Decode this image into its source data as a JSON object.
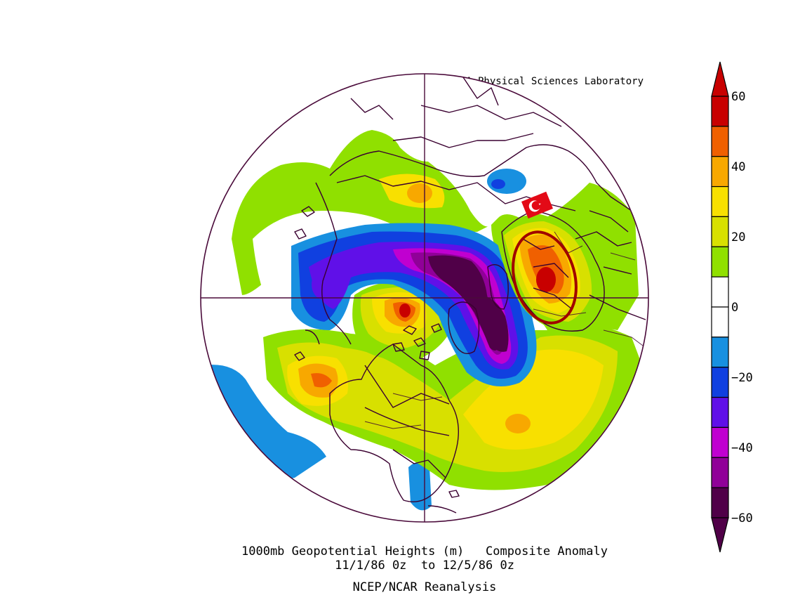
{
  "attribution": "NOAA Physical Sciences Laboratory",
  "caption": {
    "line1": "1000mb Geopotential Heights (m)   Composite Anomaly",
    "line2": "11/1/86 0z  to 12/5/86 0z",
    "line3": "NCEP/NCAR Reanalysis"
  },
  "colorbar": {
    "ticks": [
      "60",
      "40",
      "20",
      "0",
      "−20",
      "−40",
      "−60"
    ],
    "colors": [
      "#c80000",
      "#f06000",
      "#f8a800",
      "#f8e000",
      "#d8e000",
      "#90e000",
      "#ffffff",
      "#ffffff",
      "#1890e0",
      "#1040e0",
      "#6010e8",
      "#c000d0",
      "#900098",
      "#500048"
    ]
  },
  "map": {
    "projection": "north polar stereographic",
    "frame_color": "#4a0a3a",
    "annotation": {
      "shape": "ellipse",
      "color": "#a00000",
      "icon": "turkey-flag-icon"
    }
  }
}
